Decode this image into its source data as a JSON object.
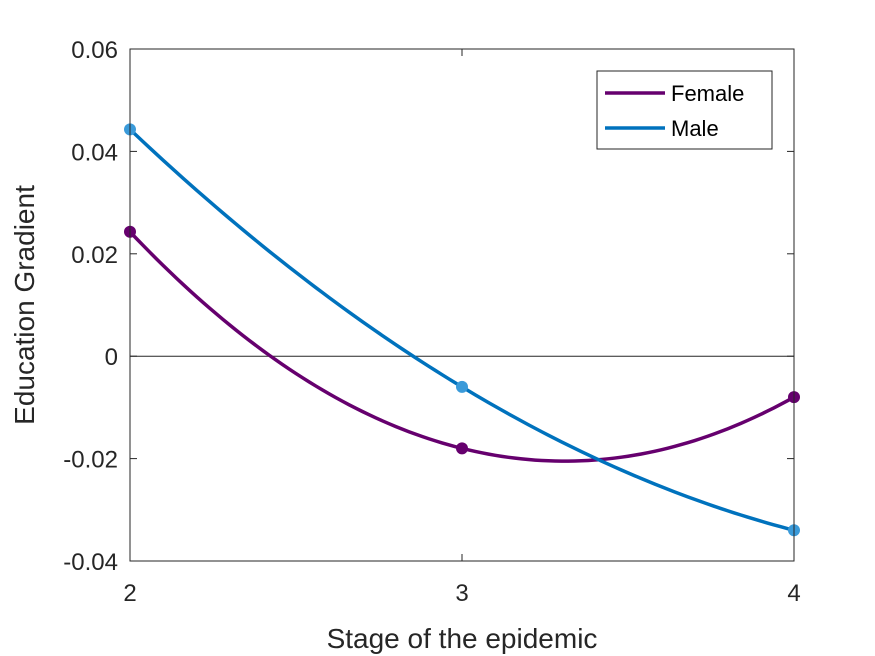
{
  "chart_data": {
    "type": "line",
    "title": "",
    "xlabel": "Stage of the epidemic",
    "ylabel": "Education Gradient",
    "xlim": [
      2,
      4
    ],
    "ylim": [
      -0.04,
      0.06
    ],
    "xticks": [
      "2",
      "3",
      "4"
    ],
    "yticks": [
      "-0.04",
      "-0.02",
      "0",
      "0.02",
      "0.04",
      "0.06"
    ],
    "x": [
      2,
      3,
      4
    ],
    "zero_line": true,
    "grid": false,
    "legend_position": "top-right",
    "series": [
      {
        "name": "Female",
        "values": [
          0.0243,
          -0.018,
          -0.008
        ],
        "color": "#66006e",
        "marker_color": "#66006e"
      },
      {
        "name": "Male",
        "values": [
          0.0443,
          -0.006,
          -0.034
        ],
        "color": "#0072bd",
        "marker_color": "#3a9ad9"
      }
    ]
  }
}
